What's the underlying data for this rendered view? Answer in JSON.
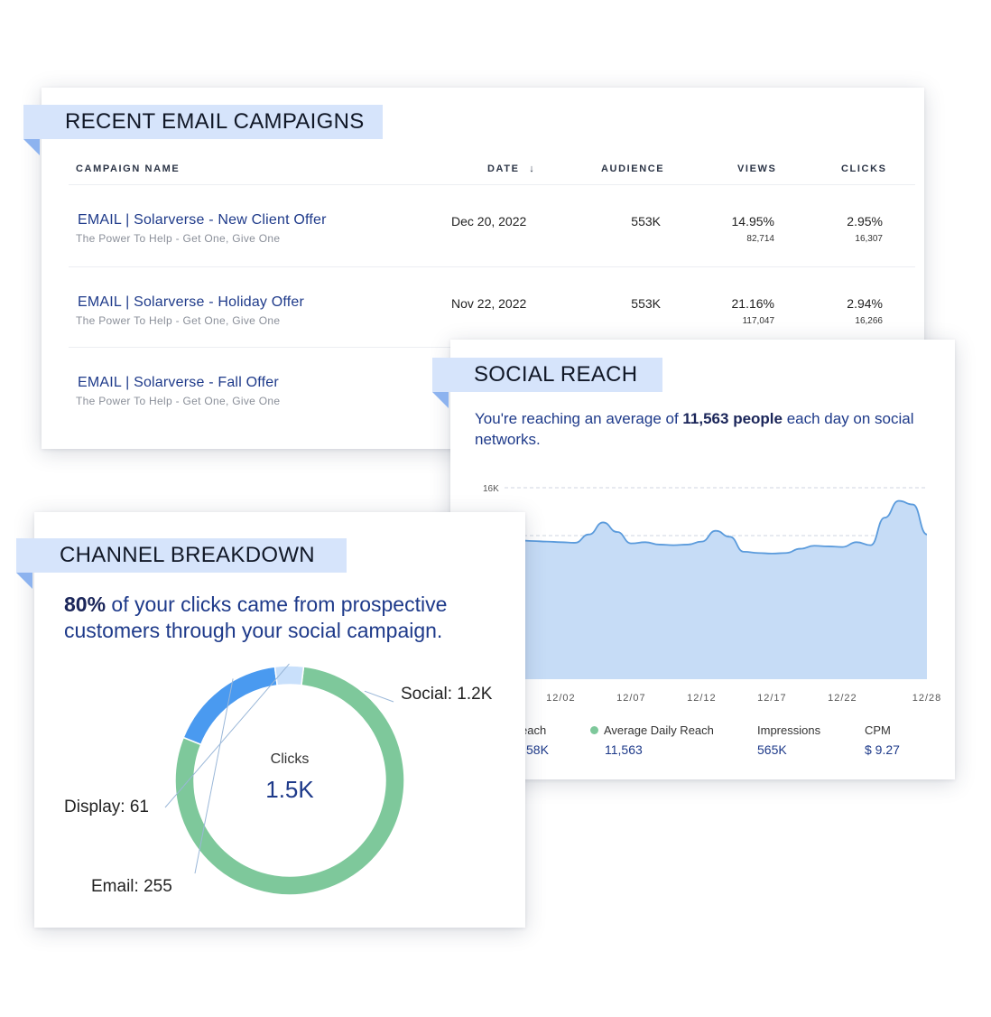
{
  "email_campaigns": {
    "title": "RECENT EMAIL CAMPAIGNS",
    "columns": {
      "name": "CAMPAIGN NAME",
      "date": "DATE",
      "date_sort": "↓",
      "audience": "AUDIENCE",
      "views": "VIEWS",
      "clicks": "CLICKS"
    },
    "rows": [
      {
        "name": "EMAIL  |  Solarverse - New Client Offer",
        "subtitle": "The Power To Help - Get One, Give One",
        "date": "Dec 20, 2022",
        "audience": "553K",
        "views_pct": "14.95%",
        "views_count": "82,714",
        "clicks_pct": "2.95%",
        "clicks_count": "16,307"
      },
      {
        "name": "EMAIL  |  Solarverse - Holiday Offer",
        "subtitle": "The Power To Help - Get One, Give One",
        "date": "Nov 22, 2022",
        "audience": "553K",
        "views_pct": "21.16%",
        "views_count": "117,047",
        "clicks_pct": "2.94%",
        "clicks_count": "16,266"
      },
      {
        "name": "EMAIL  |  Solarverse - Fall Offer",
        "subtitle": "The Power To Help - Get One, Give One"
      }
    ]
  },
  "social_reach": {
    "title": "SOCIAL REACH",
    "text_before": "You're reaching an average of ",
    "text_bold": "11,563 people",
    "text_after": " each day on social networks.",
    "legend": [
      {
        "label": "each",
        "value": "58K",
        "dot": false
      },
      {
        "label": "Average Daily Reach",
        "value": "11,563",
        "dot": true
      },
      {
        "label": "Impressions",
        "value": "565K",
        "dot": false
      },
      {
        "label": "CPM",
        "value": "$ 9.27",
        "dot": false
      }
    ]
  },
  "channel_breakdown": {
    "title": "CHANNEL BREAKDOWN",
    "text_bold": "80%",
    "text_rest": " of your clicks came from prospective customers through your social campaign.",
    "center_title": "Clicks",
    "center_value": "1.5K",
    "labels": {
      "social": "Social: 1.2K",
      "display": "Display: 61",
      "email": "Email: 255"
    }
  },
  "colors": {
    "ribbon": "#d6e4fb",
    "ribbon_fold": "#8db3ef",
    "navy": "#1e3a8a",
    "area_fill": "#c6dcf6",
    "line": "#5b9bdc",
    "social": "#7ec89b",
    "email": "#4a9af0",
    "display": "#c9e0fb"
  },
  "chart_data": [
    {
      "type": "area",
      "x_ticks": [
        "12/02",
        "12/07",
        "12/12",
        "12/17",
        "12/22",
        "12/28"
      ],
      "y_tick": "16K",
      "x": [
        "11/28",
        "11/29",
        "11/30",
        "12/01",
        "12/02",
        "12/03",
        "12/04",
        "12/05",
        "12/06",
        "12/07",
        "12/08",
        "12/09",
        "12/10",
        "12/11",
        "12/12",
        "12/13",
        "12/14",
        "12/15",
        "12/16",
        "12/17",
        "12/18",
        "12/19",
        "12/20",
        "12/21",
        "12/22",
        "12/23",
        "12/24",
        "12/25",
        "12/26",
        "12/27",
        "12/28"
      ],
      "values": [
        11700,
        11600,
        11550,
        11500,
        11450,
        11400,
        12100,
        13100,
        12300,
        11350,
        11450,
        11250,
        11200,
        11250,
        11500,
        12400,
        11900,
        10650,
        10550,
        10500,
        10550,
        10900,
        11150,
        11100,
        11050,
        11450,
        11200,
        13500,
        14900,
        14600,
        12100
      ],
      "ylim": [
        0,
        16000
      ],
      "grid": true
    },
    {
      "type": "pie",
      "categories": [
        "Social",
        "Email",
        "Display"
      ],
      "values": [
        1200,
        255,
        61
      ],
      "total": "1.5K"
    }
  ]
}
